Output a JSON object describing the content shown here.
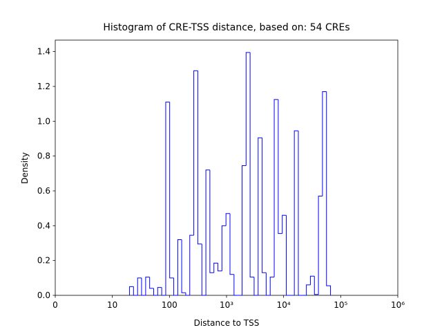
{
  "chart_data": {
    "type": "histogram",
    "title": "Histogram of CRE-TSS distance, based on: 54 CREs",
    "xlabel": "Distance to TSS",
    "ylabel": "Density",
    "xscale": "symlog",
    "linthresh": 10,
    "color": "#0000ff",
    "xlim": [
      0,
      1000000
    ],
    "xticks": [
      0,
      10,
      100,
      {
        "value": 1000,
        "label": "10³"
      },
      {
        "value": 10000,
        "label": "10⁴"
      },
      {
        "value": 100000,
        "label": "10⁵"
      },
      {
        "value": 1000000,
        "label": "10⁶"
      }
    ],
    "ylim": [
      0,
      1.466
    ],
    "yticks": [
      {
        "value": 0,
        "label": "0.0"
      },
      0.2,
      0.4,
      0.6,
      0.8,
      {
        "value": 1,
        "label": "1.0"
      },
      1.2,
      1.4
    ],
    "bins": [
      20,
      23.5,
      27.7,
      32.5,
      38.3,
      45.0,
      52.9,
      62.2,
      73.2,
      86.1,
      101,
      119,
      140,
      164,
      193,
      227,
      267,
      314,
      370,
      435,
      511,
      601,
      707,
      832,
      978,
      1150,
      1353,
      1591,
      1871,
      2200,
      2587,
      3043,
      3578,
      4208,
      4949,
      5820,
      6845,
      8050,
      9467,
      11133,
      13093,
      15398,
      18108,
      21296,
      25044,
      29452,
      34636,
      40733,
      47902,
      56333,
      66248
    ],
    "values": [
      0.05,
      0,
      0.1,
      0,
      0.105,
      0.04,
      0,
      0.045,
      0,
      1.11,
      0.1,
      0,
      0.32,
      0.015,
      0,
      0.345,
      1.29,
      0.295,
      0,
      0.72,
      0.13,
      0.185,
      0.14,
      0.4,
      0.47,
      0.12,
      0,
      0,
      0.745,
      1.395,
      0.105,
      0,
      0.905,
      0.13,
      0,
      0.105,
      1.125,
      0.355,
      0.46,
      0,
      0,
      0.945,
      0,
      0,
      0.06,
      0.11,
      0.005,
      0.57,
      1.17,
      0.055
    ]
  }
}
